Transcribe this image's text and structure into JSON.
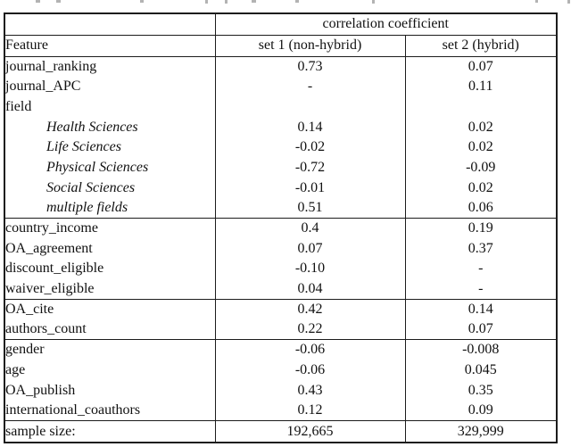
{
  "table": {
    "header": {
      "span_label": "correlation coefficient",
      "feature_label": "Feature",
      "col1_label": "set 1 (non-hybrid)",
      "col2_label": "set 2 (hybrid)"
    },
    "sections": [
      {
        "rows": [
          {
            "feature": "journal_ranking",
            "set1": "0.73",
            "set2": "0.07"
          },
          {
            "feature": "journal_APC",
            "set1": "-",
            "set2": "0.11"
          },
          {
            "feature": "field",
            "set1": "",
            "set2": ""
          },
          {
            "feature": "Health Sciences",
            "set1": "0.14",
            "set2": "0.02"
          },
          {
            "feature": "Life Sciences",
            "set1": "-0.02",
            "set2": "0.02"
          },
          {
            "feature": "Physical Sciences",
            "set1": "-0.72",
            "set2": "-0.09"
          },
          {
            "feature": "Social Sciences",
            "set1": "-0.01",
            "set2": "0.02"
          },
          {
            "feature": "multiple fields",
            "set1": "0.51",
            "set2": "0.06"
          }
        ]
      },
      {
        "rows": [
          {
            "feature": "country_income",
            "set1": "0.4",
            "set2": "0.19"
          },
          {
            "feature": "OA_agreement",
            "set1": "0.07",
            "set2": "0.37"
          },
          {
            "feature": "discount_eligible",
            "set1": "-0.10",
            "set2": "-"
          },
          {
            "feature": "waiver_eligible",
            "set1": "0.04",
            "set2": "-"
          }
        ]
      },
      {
        "rows": [
          {
            "feature": "OA_cite",
            "set1": "0.42",
            "set2": "0.14"
          },
          {
            "feature": "authors_count",
            "set1": "0.22",
            "set2": "0.07"
          }
        ]
      },
      {
        "rows": [
          {
            "feature": "gender",
            "set1": "-0.06",
            "set2": "-0.008"
          },
          {
            "feature": "age",
            "set1": "-0.06",
            "set2": "0.045"
          },
          {
            "feature": "OA_publish",
            "set1": "0.43",
            "set2": "0.35"
          },
          {
            "feature": "international_coauthors",
            "set1": "0.12",
            "set2": "0.09"
          }
        ]
      }
    ],
    "footer": {
      "label": "sample size:",
      "set1": "192,665",
      "set2": "329,999"
    },
    "colors": {
      "border": "#1c1c1c",
      "text": "#111111",
      "background": "#ffffff"
    }
  }
}
